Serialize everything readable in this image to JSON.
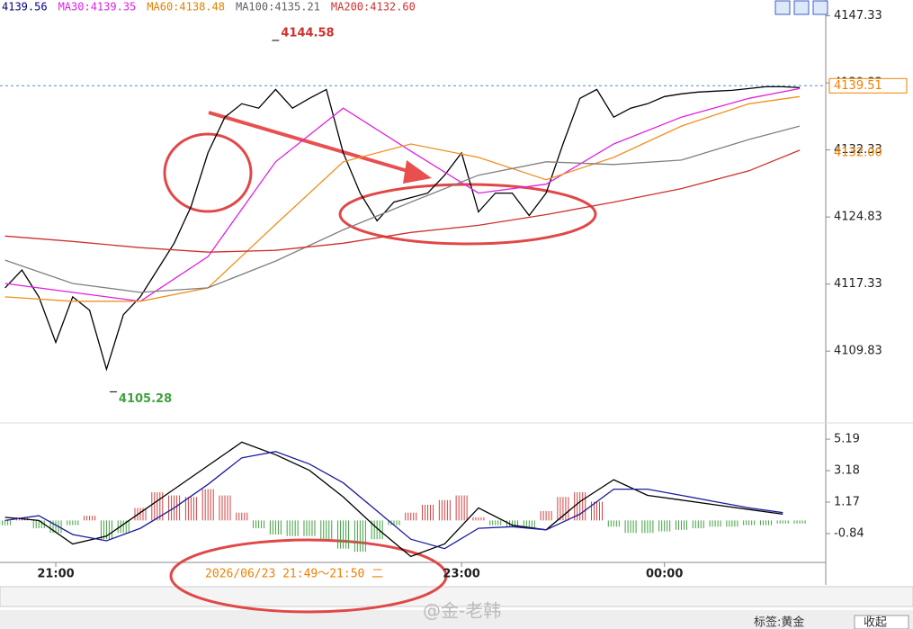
{
  "chart_data": [
    {
      "type": "line",
      "header_labels": [
        {
          "text": "4139.56",
          "color": "#000080"
        },
        {
          "text": "MA30:4139.35",
          "color": "#e020e0"
        },
        {
          "text": "MA60:4138.48",
          "color": "#e08000"
        },
        {
          "text": "MA100:4135.21",
          "color": "#606060"
        },
        {
          "text": "MA200:4132.60",
          "color": "#d03030"
        }
      ],
      "xlim": [
        -16.5,
        227.7
      ],
      "xticks": [
        {
          "value": 0,
          "label": "21:00"
        },
        {
          "value": 120,
          "label": "23:00"
        },
        {
          "value": 180,
          "label": "00:00"
        }
      ],
      "ylim": [
        4102.3,
        4149.1
      ],
      "yticks": [
        4147.33,
        4139.83,
        4132.33,
        4124.83,
        4117.33,
        4109.83
      ],
      "series": [
        {
          "color": "#000000",
          "x": [
            -15,
            -10,
            -5,
            0,
            5,
            10,
            15,
            20,
            25,
            30,
            35,
            40,
            45,
            50,
            55,
            60,
            65,
            70,
            75,
            80,
            85,
            90,
            95,
            100,
            105,
            110,
            115,
            120,
            125,
            130,
            135,
            140,
            145,
            150,
            155,
            160,
            165,
            170,
            175,
            180,
            185,
            190,
            195,
            200,
            205,
            210,
            215,
            220
          ],
          "values": [
            4116.9,
            4118.9,
            4115.9,
            4110.8,
            4115.9,
            4114.4,
            4107.8,
            4113.9,
            4115.9,
            4118.9,
            4121.9,
            4126.0,
            4132.0,
            4136.0,
            4137.5,
            4137.0,
            4139.1,
            4137.0,
            4138.1,
            4139.1,
            4132.0,
            4127.5,
            4124.4,
            4126.5,
            4127.0,
            4127.5,
            4129.5,
            4132.0,
            4125.4,
            4127.5,
            4127.5,
            4125.0,
            4127.5,
            4133.0,
            4138.1,
            4139.1,
            4136.0,
            4137.0,
            4137.5,
            4138.3,
            4138.6,
            4138.8,
            4138.9,
            4139.0,
            4139.2,
            4139.4,
            4139.4,
            4139.3
          ]
        },
        {
          "color": "#e020e0",
          "x": [
            -15,
            5,
            25,
            45,
            65,
            85,
            105,
            125,
            145,
            165,
            185,
            205,
            220
          ],
          "values": [
            4117.4,
            4116.4,
            4115.4,
            4120.4,
            4131.0,
            4137.0,
            4132.2,
            4127.5,
            4128.5,
            4133.0,
            4136.0,
            4138.1,
            4139.2
          ]
        },
        {
          "color": "#f09020",
          "x": [
            -15,
            5,
            25,
            45,
            65,
            85,
            105,
            125,
            145,
            165,
            185,
            205,
            220
          ],
          "values": [
            4115.9,
            4115.4,
            4115.4,
            4116.9,
            4124.0,
            4131.0,
            4133.0,
            4131.5,
            4129.0,
            4131.5,
            4135.0,
            4137.5,
            4138.3
          ]
        },
        {
          "color": "#808080",
          "x": [
            -15,
            5,
            25,
            45,
            65,
            85,
            105,
            125,
            145,
            165,
            185,
            205,
            220
          ],
          "values": [
            4120.0,
            4117.4,
            4116.4,
            4116.9,
            4119.9,
            4123.4,
            4126.5,
            4129.5,
            4131.0,
            4130.7,
            4131.2,
            4133.5,
            4135.0
          ]
        },
        {
          "color": "#d03030",
          "x": [
            -15,
            5,
            25,
            45,
            65,
            85,
            105,
            125,
            145,
            165,
            185,
            205,
            220
          ],
          "values": [
            4122.7,
            4122.1,
            4121.4,
            4120.9,
            4121.1,
            4121.9,
            4123.1,
            4123.9,
            4125.1,
            4126.5,
            4128.0,
            4130.0,
            4132.3
          ]
        }
      ],
      "annotations": [
        {
          "text": "4144.58",
          "x": 65,
          "value": 4144.58,
          "color": "#d03030"
        },
        {
          "text": "4105.28",
          "x": 17,
          "value": 4105.28,
          "color": "#40a040"
        }
      ],
      "price_labels": [
        {
          "value": 4139.51,
          "color": "#f08000"
        },
        {
          "value": 4132.0,
          "color": "#f08000"
        }
      ]
    },
    {
      "type": "macd",
      "xlim": [
        -16.5,
        227.7
      ],
      "ylim": [
        -2.68,
        5.94
      ],
      "yticks": [
        5.19,
        3.18,
        1.17,
        -0.84
      ],
      "histogram": {
        "up_color": "#d04040",
        "down_color": "#40a040",
        "x": [
          -15,
          -10,
          -5,
          0,
          5,
          10,
          15,
          20,
          25,
          30,
          35,
          40,
          45,
          50,
          55,
          60,
          65,
          70,
          75,
          80,
          85,
          90,
          95,
          100,
          105,
          110,
          115,
          120,
          125,
          130,
          135,
          140,
          145,
          150,
          155,
          160,
          165,
          170,
          175,
          180,
          185,
          190,
          195,
          200,
          205,
          210,
          215,
          220
        ],
        "values": [
          -0.3,
          0.2,
          -0.5,
          -0.8,
          -0.3,
          0.3,
          -1.2,
          -0.8,
          0.8,
          1.8,
          1.6,
          1.5,
          2.0,
          1.6,
          0.5,
          -0.5,
          -0.9,
          -1.0,
          -1.0,
          -1.2,
          -1.8,
          -2.0,
          -1.2,
          -0.3,
          0.5,
          1.0,
          1.3,
          1.6,
          0.2,
          -0.3,
          -0.4,
          -0.5,
          0.6,
          1.5,
          1.8,
          1.2,
          -0.4,
          -0.8,
          -0.8,
          -0.7,
          -0.6,
          -0.5,
          -0.4,
          -0.4,
          -0.3,
          -0.3,
          -0.2,
          -0.2
        ]
      },
      "series": [
        {
          "color": "#000000",
          "x": [
            -15,
            -5,
            5,
            15,
            25,
            35,
            45,
            55,
            65,
            75,
            85,
            95,
            105,
            115,
            125,
            135,
            145,
            155,
            165,
            175,
            185,
            195,
            205,
            215
          ],
          "values": [
            0.2,
            0.0,
            -1.5,
            -1.0,
            0.5,
            2.0,
            3.5,
            5.0,
            4.2,
            3.2,
            1.5,
            -0.5,
            -2.3,
            -1.5,
            0.8,
            -0.3,
            -0.6,
            1.2,
            2.6,
            1.6,
            1.3,
            1.0,
            0.7,
            0.4
          ]
        },
        {
          "color": "#1a1aa0",
          "x": [
            -15,
            -5,
            5,
            15,
            25,
            35,
            45,
            55,
            65,
            75,
            85,
            95,
            105,
            115,
            125,
            135,
            145,
            155,
            165,
            175,
            185,
            195,
            205,
            215
          ],
          "values": [
            0.0,
            0.3,
            -0.9,
            -1.3,
            -0.5,
            0.8,
            2.3,
            4.0,
            4.4,
            3.6,
            2.4,
            0.6,
            -1.2,
            -1.8,
            -0.5,
            -0.4,
            -0.6,
            0.4,
            2.0,
            2.0,
            1.6,
            1.2,
            0.8,
            0.5
          ]
        }
      ]
    }
  ],
  "ui": {
    "date_label": "2026/06/23 21:49～21:50 二",
    "watermark": "@金-老韩",
    "tag": "标签:黄金",
    "collapse": "收起"
  }
}
